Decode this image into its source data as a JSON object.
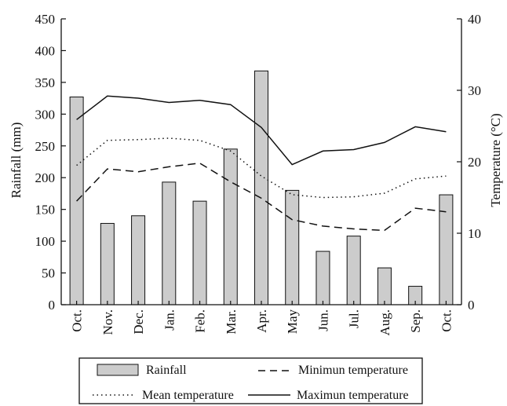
{
  "chart_data": {
    "type": "bar",
    "categories": [
      "Oct.",
      "Nov.",
      "Dec.",
      "Jan.",
      "Feb.",
      "Mar.",
      "Apr.",
      "May",
      "Jun.",
      "Jul.",
      "Aug.",
      "Sep.",
      "Oct."
    ],
    "series": [
      {
        "name": "Rainfall",
        "type": "bar",
        "axis": "left",
        "values": [
          327,
          128,
          140,
          193,
          163,
          245,
          368,
          180,
          84,
          108,
          58,
          29,
          173
        ]
      },
      {
        "name": "Minimun temperature",
        "type": "line",
        "axis": "right",
        "style": "dashed",
        "values": [
          14.5,
          19.0,
          18.6,
          19.3,
          19.8,
          17.2,
          14.9,
          11.9,
          11.0,
          10.6,
          10.4,
          13.5,
          13.0
        ]
      },
      {
        "name": "Mean temperature",
        "type": "line",
        "axis": "right",
        "style": "dotted",
        "values": [
          19.5,
          23.0,
          23.1,
          23.3,
          23.0,
          21.5,
          18.0,
          15.4,
          15.0,
          15.1,
          15.6,
          17.6,
          18.0
        ]
      },
      {
        "name": "Maximun temperature",
        "type": "line",
        "axis": "right",
        "style": "solid",
        "values": [
          25.9,
          29.2,
          28.9,
          28.3,
          28.6,
          28.0,
          24.8,
          19.6,
          21.5,
          21.7,
          22.7,
          24.9,
          24.2
        ]
      }
    ],
    "ylabel": "Rainfall (mm)",
    "y2label": "Temperature (°C)",
    "ylim": [
      0,
      450
    ],
    "y2lim": [
      0,
      40
    ],
    "yticks": [
      "0",
      "50",
      "100",
      "150",
      "200",
      "250",
      "300",
      "350",
      "400",
      "450"
    ],
    "y2ticks": [
      "0",
      "10",
      "20",
      "30",
      "40"
    ],
    "grid": false,
    "legend_position": "bottom",
    "colors": {
      "bar_fill": "#cccccc",
      "stroke": "#111111"
    }
  }
}
